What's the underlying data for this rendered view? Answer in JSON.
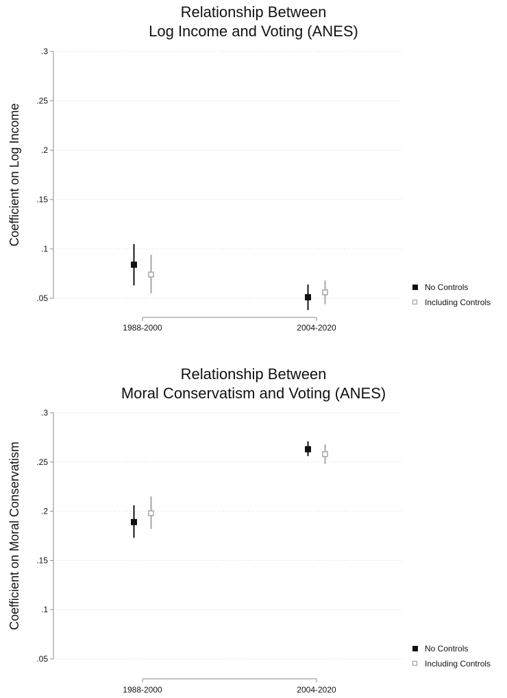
{
  "colors": {
    "no_controls": "#111111",
    "including_controls": "#a6a6a6"
  },
  "chart_data": [
    {
      "type": "scatter",
      "title": [
        "Relationship Between",
        "Log Income and Voting (ANES)"
      ],
      "ylabel": "Coefficient on Log Income",
      "xlabel": "",
      "categories": [
        "1988-2000",
        "2004-2020"
      ],
      "yticks": [
        0.05,
        0.1,
        0.15,
        0.2,
        0.25,
        0.3
      ],
      "ytick_labels": [
        ".05",
        ".1",
        ".15",
        ".2",
        ".25",
        ".3"
      ],
      "ylim": [
        0.05,
        0.3
      ],
      "grid": true,
      "legend_position": "bottom-right",
      "series": [
        {
          "name": "No Controls",
          "marker": "filled-square",
          "values": [
            0.084,
            0.051
          ],
          "ci_low": [
            0.063,
            0.038
          ],
          "ci_high": [
            0.105,
            0.064
          ]
        },
        {
          "name": "Including Controls",
          "marker": "hollow-square",
          "values": [
            0.074,
            0.056
          ],
          "ci_low": [
            0.055,
            0.044
          ],
          "ci_high": [
            0.094,
            0.068
          ]
        }
      ]
    },
    {
      "type": "scatter",
      "title": [
        "Relationship Between",
        "Moral Conservatism and Voting (ANES)"
      ],
      "ylabel": "Coefficient on Moral Conservatism",
      "xlabel": "",
      "categories": [
        "1988-2000",
        "2004-2020"
      ],
      "yticks": [
        0.05,
        0.1,
        0.15,
        0.2,
        0.25,
        0.3
      ],
      "ytick_labels": [
        ".05",
        ".1",
        ".15",
        ".2",
        ".25",
        ".3"
      ],
      "ylim": [
        0.05,
        0.3
      ],
      "grid": true,
      "legend_position": "bottom-right",
      "series": [
        {
          "name": "No Controls",
          "marker": "filled-square",
          "values": [
            0.189,
            0.263
          ],
          "ci_low": [
            0.173,
            0.256
          ],
          "ci_high": [
            0.206,
            0.271
          ]
        },
        {
          "name": "Including Controls",
          "marker": "hollow-square",
          "values": [
            0.198,
            0.258
          ],
          "ci_low": [
            0.182,
            0.248
          ],
          "ci_high": [
            0.215,
            0.268
          ]
        }
      ]
    }
  ]
}
